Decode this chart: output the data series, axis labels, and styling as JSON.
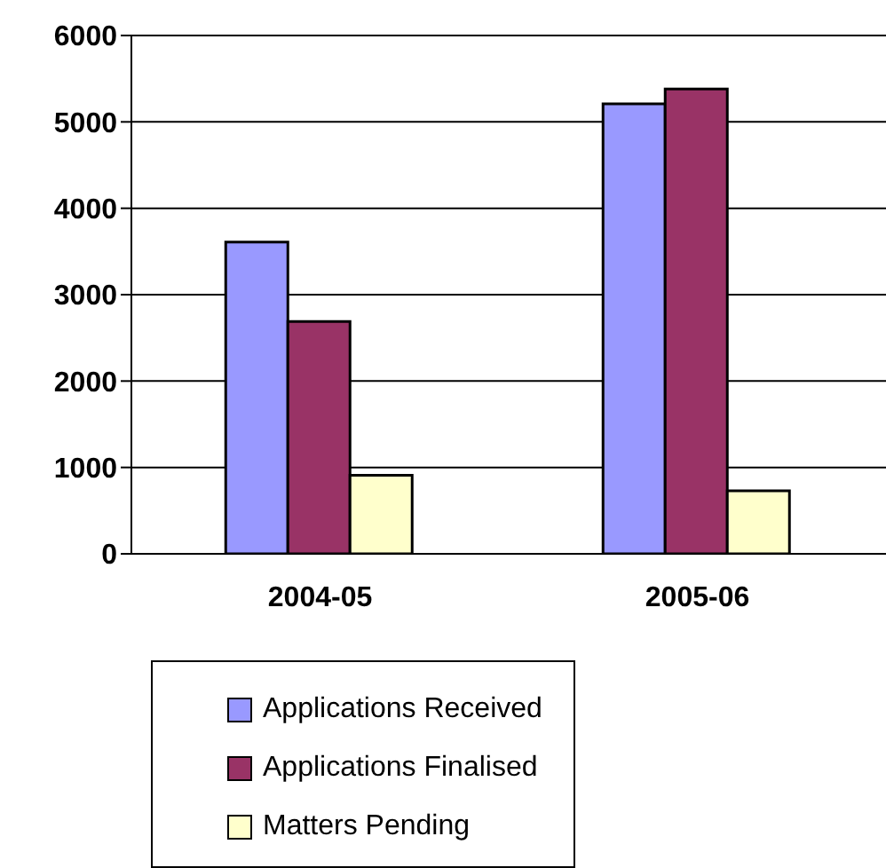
{
  "chart_data": {
    "type": "bar",
    "categories": [
      "2004-05",
      "2005-06"
    ],
    "series": [
      {
        "name": "Applications Received",
        "color": "#9999ff",
        "values": [
          3610,
          5210
        ]
      },
      {
        "name": "Applications Finalised",
        "color": "#993366",
        "values": [
          2690,
          5380
        ]
      },
      {
        "name": "Matters Pending",
        "color": "#ffffcc",
        "values": [
          910,
          730
        ]
      }
    ],
    "ylim": [
      0,
      6000
    ],
    "yticks": [
      0,
      1000,
      2000,
      3000,
      4000,
      5000,
      6000
    ],
    "grid": "y",
    "legend": "bottom"
  }
}
